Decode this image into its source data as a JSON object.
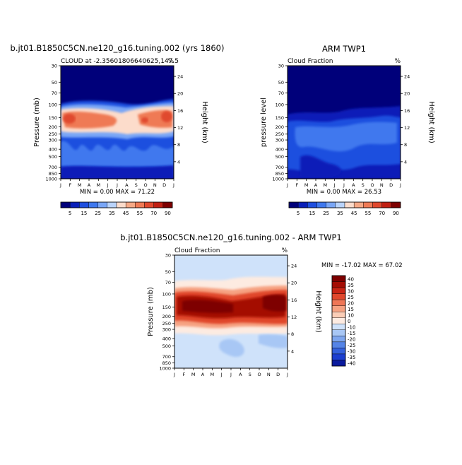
{
  "panels": [
    {
      "title": "b.jt01.B1850C5CN.ne120_g16.tuning.002 (yrs 1860)",
      "left_label": "CLOUD at -2.35601806640625,147.5",
      "right_label": "%",
      "ylabel": "Pressure (mb)",
      "ylabel_right": "Height (km)",
      "stats": "MIN =    0.00 MAX =   71.22"
    },
    {
      "title": "ARM TWP1",
      "left_label": "Cloud Fraction",
      "right_label": "%",
      "ylabel": "pressure level",
      "ylabel_right": "Height (km)",
      "stats": "MIN =    0.00 MAX =   26.53"
    },
    {
      "title": "b.jt01.B1850C5CN.ne120_g16.tuning.002 - ARM TWP1",
      "left_label": "Cloud Fraction",
      "right_label": "%",
      "ylabel": "Pressure (mb)",
      "ylabel_right": "Height (km)",
      "stats": "MIN = -17.02 MAX =   67.02"
    }
  ],
  "chart_data": [
    {
      "type": "heatmap",
      "title": "b.jt01.B1850C5CN.ne120_g16.tuning.002 (yrs 1860)",
      "months": [
        "J",
        "F",
        "M",
        "A",
        "M",
        "J",
        "J",
        "A",
        "S",
        "O",
        "N",
        "D",
        "J"
      ],
      "pressure_ticks": [
        30,
        50,
        70,
        100,
        150,
        200,
        250,
        300,
        400,
        500,
        700,
        850,
        1000
      ],
      "height_ticks": [
        24,
        20,
        16,
        12,
        8,
        4
      ],
      "colorbar_labels": [
        "5",
        "15",
        "25",
        "35",
        "45",
        "55",
        "70",
        "90"
      ],
      "range": [
        0,
        71.22
      ],
      "cloud_layer_peak_percent": 71.22
    },
    {
      "type": "heatmap",
      "title": "ARM TWP1",
      "months": [
        "J",
        "F",
        "M",
        "A",
        "M",
        "J",
        "J",
        "A",
        "S",
        "O",
        "N",
        "D",
        "J"
      ],
      "pressure_ticks": [
        30,
        50,
        70,
        100,
        150,
        200,
        250,
        300,
        400,
        500,
        700,
        850,
        1000
      ],
      "height_ticks": [
        24,
        20,
        16,
        12,
        8,
        4
      ],
      "colorbar_labels": [
        "5",
        "15",
        "25",
        "35",
        "45",
        "55",
        "70",
        "90"
      ],
      "range": [
        0,
        26.53
      ]
    },
    {
      "type": "heatmap",
      "title": "b.jt01.B1850C5CN.ne120_g16.tuning.002 - ARM TWP1",
      "months": [
        "J",
        "F",
        "M",
        "A",
        "M",
        "J",
        "J",
        "A",
        "S",
        "O",
        "N",
        "D",
        "J"
      ],
      "pressure_ticks": [
        30,
        50,
        70,
        100,
        150,
        200,
        250,
        300,
        400,
        500,
        700,
        850,
        1000
      ],
      "height_ticks": [
        24,
        20,
        16,
        12,
        8,
        4
      ],
      "colorbar_labels": [
        "40",
        "35",
        "30",
        "25",
        "20",
        "15",
        "10",
        "0",
        "-10",
        "-15",
        "-20",
        "-25",
        "-30",
        "-35",
        "-40"
      ],
      "range": [
        -17.02,
        67.02
      ]
    }
  ],
  "colors": {
    "seq_scale": [
      "#00007a",
      "#0a1fb8",
      "#1f4fdf",
      "#3f78ee",
      "#79a6f6",
      "#b9d3fb",
      "#fcdccb",
      "#f6a986",
      "#ef7a55",
      "#e0482d",
      "#c01f12",
      "#7e0000"
    ],
    "div_scale": [
      "#7e0000",
      "#a40d04",
      "#c82314",
      "#e0472c",
      "#ef7656",
      "#f6a282",
      "#fbcdb6",
      "#fdebe1",
      "#cfe2fa",
      "#a8c7f5",
      "#7ea6ee",
      "#5584e6",
      "#3461dc",
      "#1c3fcf",
      "#0a1b9e"
    ]
  }
}
